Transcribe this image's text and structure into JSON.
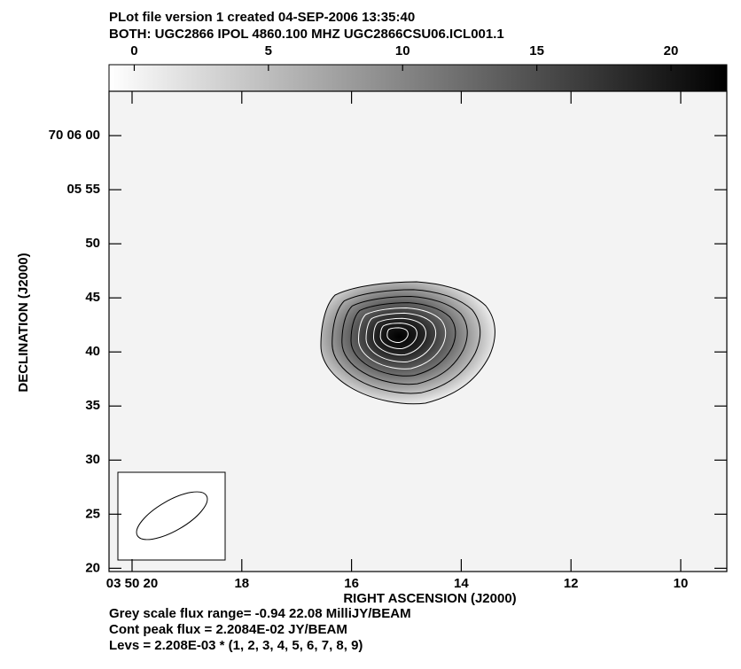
{
  "chart_data": {
    "type": "image",
    "title": "PLot file version 1  created 04-SEP-2006 13:35:40",
    "subtitle": "BOTH: UGC2866  IPOL  4860.100 MHZ  UGC2866CSU06.ICL001.1",
    "clim": [
      -0.94,
      22.08
    ],
    "cticks": [
      0,
      5,
      10,
      15,
      20
    ],
    "xlabel": "RIGHT ASCENSION (J2000)",
    "ylabel": "DECLINATION (J2000)",
    "xlim": [
      20.42,
      9.16
    ],
    "xticks": [
      {
        "value": 20,
        "label": "03 50 20"
      },
      18,
      16,
      14,
      12,
      10
    ],
    "ylim": [
      19.7,
      64.1
    ],
    "yticks": [
      {
        "value": 60,
        "label": "70 06 00"
      },
      {
        "value": 55,
        "label": "05 55"
      },
      50,
      45,
      40,
      35,
      30,
      25,
      20
    ],
    "notes": [
      "Grey scale flux range= -0.94 22.08 MilliJY/BEAM",
      "Cont peak flux =  2.2084E-02 JY/BEAM",
      "Levs = 2.208E-03 * (1, 2, 3, 4, 5, 6, 7, 8, 9)"
    ]
  }
}
